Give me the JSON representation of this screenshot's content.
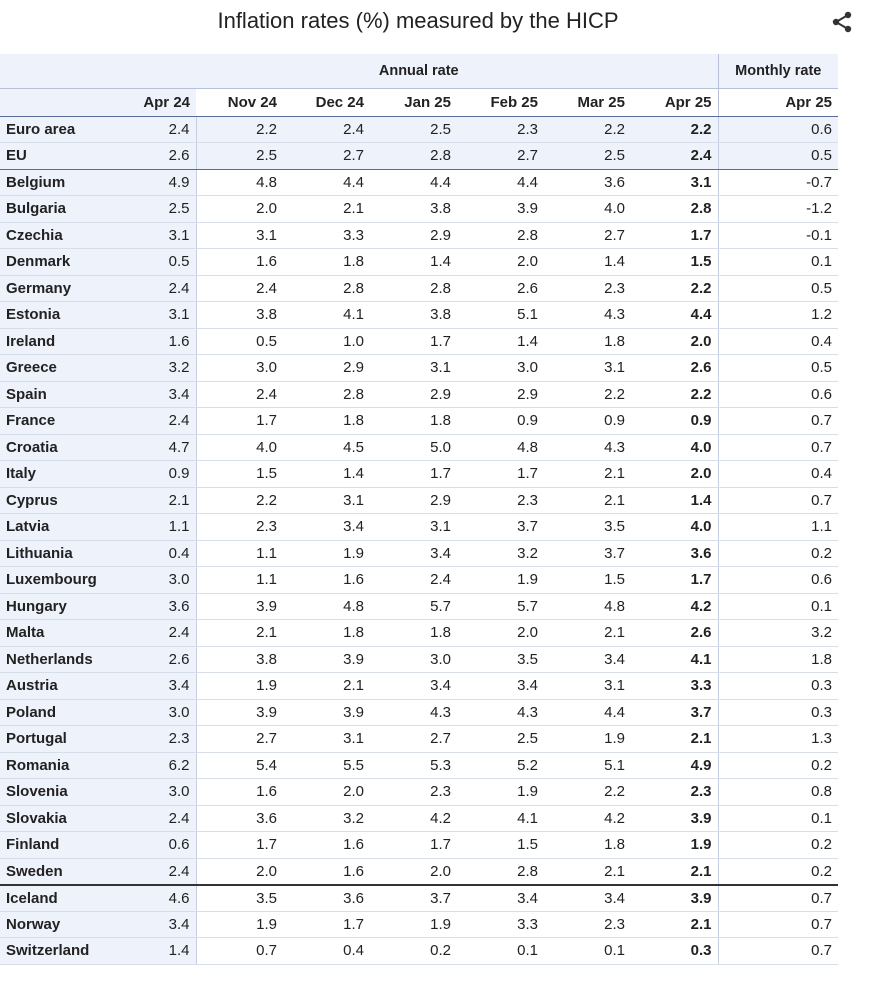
{
  "title": "Inflation rates (%) measured by the HICP",
  "share_icon": "share-icon",
  "accent_color": "#eef2fb",
  "table": {
    "group_headers": {
      "annual": "Annual rate",
      "monthly": "Monthly rate"
    },
    "columns": [
      "Apr 24",
      "Nov 24",
      "Dec 24",
      "Jan 25",
      "Feb 25",
      "Mar 25",
      "Apr 25",
      "Apr 25"
    ],
    "rows": [
      {
        "country": "Euro area",
        "values": [
          "2.4",
          "2.2",
          "2.4",
          "2.5",
          "2.3",
          "2.2",
          "2.2",
          "0.6"
        ],
        "agg": true
      },
      {
        "country": "EU",
        "values": [
          "2.6",
          "2.5",
          "2.7",
          "2.8",
          "2.7",
          "2.5",
          "2.4",
          "0.5"
        ],
        "agg": true
      },
      {
        "country": "Belgium",
        "values": [
          "4.9",
          "4.8",
          "4.4",
          "4.4",
          "4.4",
          "3.6",
          "3.1",
          "-0.7"
        ]
      },
      {
        "country": "Bulgaria",
        "values": [
          "2.5",
          "2.0",
          "2.1",
          "3.8",
          "3.9",
          "4.0",
          "2.8",
          "-1.2"
        ]
      },
      {
        "country": "Czechia",
        "values": [
          "3.1",
          "3.1",
          "3.3",
          "2.9",
          "2.8",
          "2.7",
          "1.7",
          "-0.1"
        ]
      },
      {
        "country": "Denmark",
        "values": [
          "0.5",
          "1.6",
          "1.8",
          "1.4",
          "2.0",
          "1.4",
          "1.5",
          "0.1"
        ]
      },
      {
        "country": "Germany",
        "values": [
          "2.4",
          "2.4",
          "2.8",
          "2.8",
          "2.6",
          "2.3",
          "2.2",
          "0.5"
        ]
      },
      {
        "country": "Estonia",
        "values": [
          "3.1",
          "3.8",
          "4.1",
          "3.8",
          "5.1",
          "4.3",
          "4.4",
          "1.2"
        ]
      },
      {
        "country": "Ireland",
        "values": [
          "1.6",
          "0.5",
          "1.0",
          "1.7",
          "1.4",
          "1.8",
          "2.0",
          "0.4"
        ]
      },
      {
        "country": "Greece",
        "values": [
          "3.2",
          "3.0",
          "2.9",
          "3.1",
          "3.0",
          "3.1",
          "2.6",
          "0.5"
        ]
      },
      {
        "country": "Spain",
        "values": [
          "3.4",
          "2.4",
          "2.8",
          "2.9",
          "2.9",
          "2.2",
          "2.2",
          "0.6"
        ]
      },
      {
        "country": "France",
        "values": [
          "2.4",
          "1.7",
          "1.8",
          "1.8",
          "0.9",
          "0.9",
          "0.9",
          "0.7"
        ]
      },
      {
        "country": "Croatia",
        "values": [
          "4.7",
          "4.0",
          "4.5",
          "5.0",
          "4.8",
          "4.3",
          "4.0",
          "0.7"
        ]
      },
      {
        "country": "Italy",
        "values": [
          "0.9",
          "1.5",
          "1.4",
          "1.7",
          "1.7",
          "2.1",
          "2.0",
          "0.4"
        ]
      },
      {
        "country": "Cyprus",
        "values": [
          "2.1",
          "2.2",
          "3.1",
          "2.9",
          "2.3",
          "2.1",
          "1.4",
          "0.7"
        ]
      },
      {
        "country": "Latvia",
        "values": [
          "1.1",
          "2.3",
          "3.4",
          "3.1",
          "3.7",
          "3.5",
          "4.0",
          "1.1"
        ]
      },
      {
        "country": "Lithuania",
        "values": [
          "0.4",
          "1.1",
          "1.9",
          "3.4",
          "3.2",
          "3.7",
          "3.6",
          "0.2"
        ]
      },
      {
        "country": "Luxembourg",
        "values": [
          "3.0",
          "1.1",
          "1.6",
          "2.4",
          "1.9",
          "1.5",
          "1.7",
          "0.6"
        ]
      },
      {
        "country": "Hungary",
        "values": [
          "3.6",
          "3.9",
          "4.8",
          "5.7",
          "5.7",
          "4.8",
          "4.2",
          "0.1"
        ]
      },
      {
        "country": "Malta",
        "values": [
          "2.4",
          "2.1",
          "1.8",
          "1.8",
          "2.0",
          "2.1",
          "2.6",
          "3.2"
        ]
      },
      {
        "country": "Netherlands",
        "values": [
          "2.6",
          "3.8",
          "3.9",
          "3.0",
          "3.5",
          "3.4",
          "4.1",
          "1.8"
        ]
      },
      {
        "country": "Austria",
        "values": [
          "3.4",
          "1.9",
          "2.1",
          "3.4",
          "3.4",
          "3.1",
          "3.3",
          "0.3"
        ]
      },
      {
        "country": "Poland",
        "values": [
          "3.0",
          "3.9",
          "3.9",
          "4.3",
          "4.3",
          "4.4",
          "3.7",
          "0.3"
        ]
      },
      {
        "country": "Portugal",
        "values": [
          "2.3",
          "2.7",
          "3.1",
          "2.7",
          "2.5",
          "1.9",
          "2.1",
          "1.3"
        ]
      },
      {
        "country": "Romania",
        "values": [
          "6.2",
          "5.4",
          "5.5",
          "5.3",
          "5.2",
          "5.1",
          "4.9",
          "0.2"
        ]
      },
      {
        "country": "Slovenia",
        "values": [
          "3.0",
          "1.6",
          "2.0",
          "2.3",
          "1.9",
          "2.2",
          "2.3",
          "0.8"
        ]
      },
      {
        "country": "Slovakia",
        "values": [
          "2.4",
          "3.6",
          "3.2",
          "4.2",
          "4.1",
          "4.2",
          "3.9",
          "0.1"
        ]
      },
      {
        "country": "Finland",
        "values": [
          "0.6",
          "1.7",
          "1.6",
          "1.7",
          "1.5",
          "1.8",
          "1.9",
          "0.2"
        ]
      },
      {
        "country": "Sweden",
        "values": [
          "2.4",
          "2.0",
          "1.6",
          "2.0",
          "2.8",
          "2.1",
          "2.1",
          "0.2"
        ]
      },
      {
        "country": "Iceland",
        "values": [
          "4.6",
          "3.5",
          "3.6",
          "3.7",
          "3.4",
          "3.4",
          "3.9",
          "0.7"
        ]
      },
      {
        "country": "Norway",
        "values": [
          "3.4",
          "1.9",
          "1.7",
          "1.9",
          "3.3",
          "2.3",
          "2.1",
          "0.7"
        ]
      },
      {
        "country": "Switzerland",
        "values": [
          "1.4",
          "0.7",
          "0.4",
          "0.2",
          "0.1",
          "0.1",
          "0.3",
          "0.7"
        ]
      }
    ]
  }
}
